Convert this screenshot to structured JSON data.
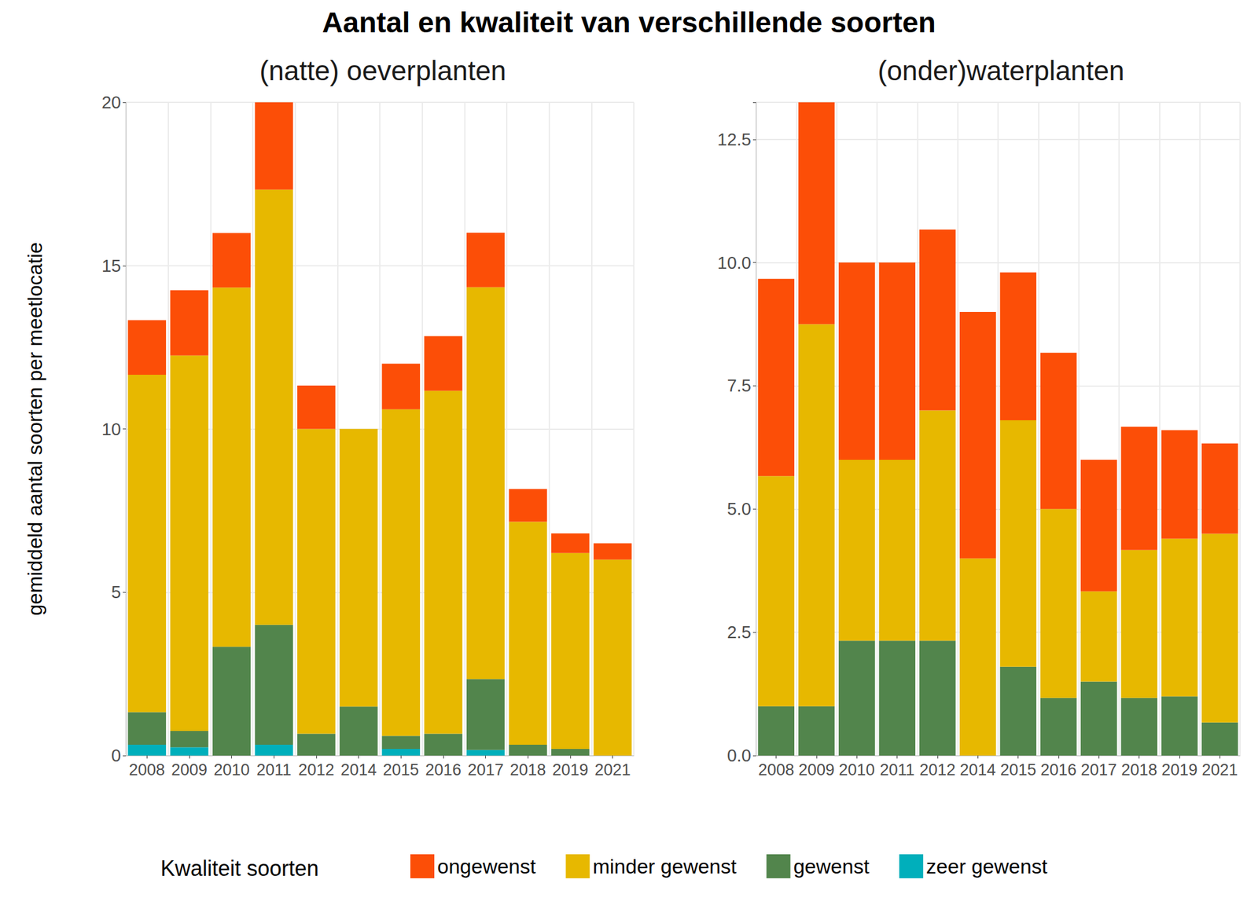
{
  "title": "Aantal en kwaliteit van verschillende soorten",
  "y_label": "gemiddeld aantal soorten per meetlocatie",
  "legend_title": "Kwaliteit soorten",
  "legend": "bottom",
  "chart_data": [
    {
      "type": "bar",
      "title": "(natte) oeverplanten",
      "stacked": true,
      "grid": true,
      "categories": [
        "2008",
        "2009",
        "2010",
        "2011",
        "2012",
        "2014",
        "2015",
        "2016",
        "2017",
        "2018",
        "2019",
        "2021"
      ],
      "ylim": [
        0,
        20
      ],
      "yticks": [
        0,
        5,
        10,
        15,
        20
      ],
      "series": [
        {
          "name": "ongewenst",
          "color": "#FC4E07",
          "values": [
            1.67,
            2.0,
            1.67,
            2.67,
            1.33,
            0,
            1.4,
            1.67,
            1.67,
            1.0,
            0.6,
            0.5
          ]
        },
        {
          "name": "minder gewenst",
          "color": "#E7B800",
          "values": [
            10.33,
            11.5,
            11.0,
            13.33,
            9.33,
            8.5,
            10.0,
            10.5,
            12.0,
            6.83,
            6.0,
            6.0
          ]
        },
        {
          "name": "gewenst",
          "color": "#52854C",
          "values": [
            1.0,
            0.5,
            3.33,
            3.67,
            0.67,
            1.5,
            0.4,
            0.67,
            2.17,
            0.33,
            0.2,
            0
          ]
        },
        {
          "name": "zeer gewenst",
          "color": "#00AFBB",
          "values": [
            0.33,
            0.25,
            0,
            0.33,
            0,
            0,
            0.2,
            0,
            0.17,
            0,
            0,
            0
          ]
        }
      ]
    },
    {
      "type": "bar",
      "title": "(onder)waterplanten",
      "stacked": true,
      "grid": true,
      "categories": [
        "2008",
        "2009",
        "2010",
        "2011",
        "2012",
        "2014",
        "2015",
        "2016",
        "2017",
        "2018",
        "2019",
        "2021"
      ],
      "ylim": [
        0,
        13.25
      ],
      "yticks": [
        {
          "value": 0,
          "label": "0.0"
        },
        2.5,
        {
          "value": 5,
          "label": "5.0"
        },
        7.5,
        {
          "value": 10,
          "label": "10.0"
        },
        12.5
      ],
      "series": [
        {
          "name": "ongewenst",
          "color": "#FC4E07",
          "values": [
            4.0,
            4.5,
            4.0,
            4.0,
            3.67,
            5.0,
            3.0,
            3.17,
            2.67,
            2.5,
            2.2,
            1.83
          ]
        },
        {
          "name": "minder gewenst",
          "color": "#E7B800",
          "values": [
            4.67,
            7.75,
            3.67,
            3.67,
            4.67,
            4.0,
            5.0,
            3.83,
            1.83,
            3.0,
            3.2,
            3.83
          ]
        },
        {
          "name": "gewenst",
          "color": "#52854C",
          "values": [
            1.0,
            1.0,
            2.33,
            2.33,
            2.33,
            0,
            1.8,
            1.17,
            1.5,
            1.17,
            1.2,
            0.67
          ]
        },
        {
          "name": "zeer gewenst",
          "color": "#00AFBB",
          "values": [
            0,
            0,
            0,
            0,
            0,
            0,
            0,
            0,
            0,
            0,
            0,
            0
          ]
        }
      ]
    }
  ]
}
